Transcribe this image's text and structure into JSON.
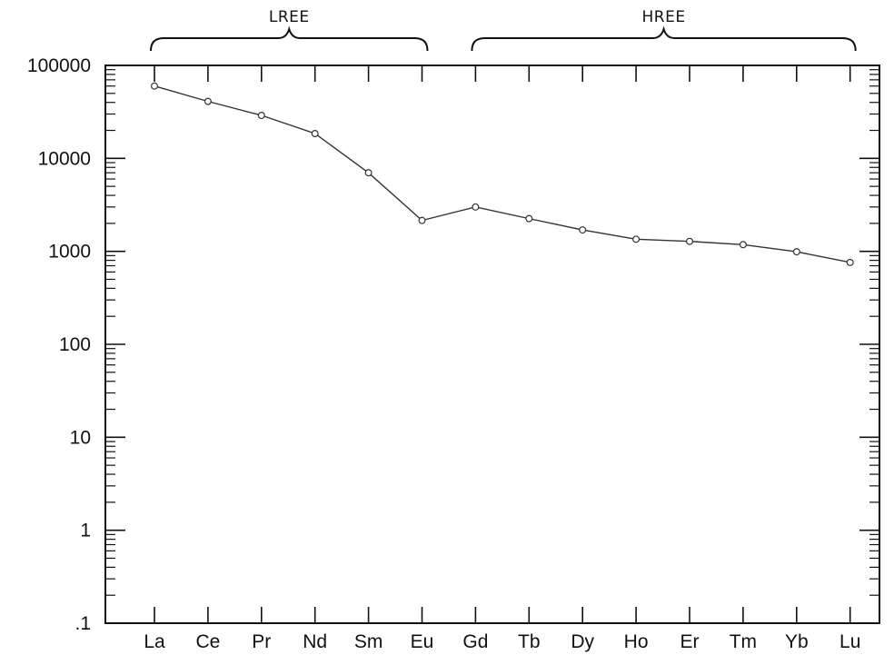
{
  "chart_data": {
    "type": "line",
    "title": "",
    "xlabel": "",
    "ylabel": "",
    "yscale": "log",
    "ylim": [
      0.1,
      100000
    ],
    "y_tick_labels": [
      ".1",
      "1",
      "10",
      "100",
      "1000",
      "10000",
      "100000"
    ],
    "categories": [
      "La",
      "Ce",
      "Pr",
      "Nd",
      "Sm",
      "Eu",
      "Gd",
      "Tb",
      "Dy",
      "Ho",
      "Er",
      "Tm",
      "Yb",
      "Lu"
    ],
    "series": [
      {
        "values": [
          60000,
          41000,
          29000,
          18500,
          7000,
          2150,
          3000,
          2250,
          1700,
          1350,
          1280,
          1180,
          990,
          760
        ]
      }
    ],
    "groups": [
      {
        "label": "LREE",
        "from": "La",
        "to": "Eu"
      },
      {
        "label": "HREE",
        "from": "Gd",
        "to": "Lu"
      }
    ],
    "grid": false,
    "colors": {
      "line": "#333333",
      "axis": "#111111"
    }
  }
}
